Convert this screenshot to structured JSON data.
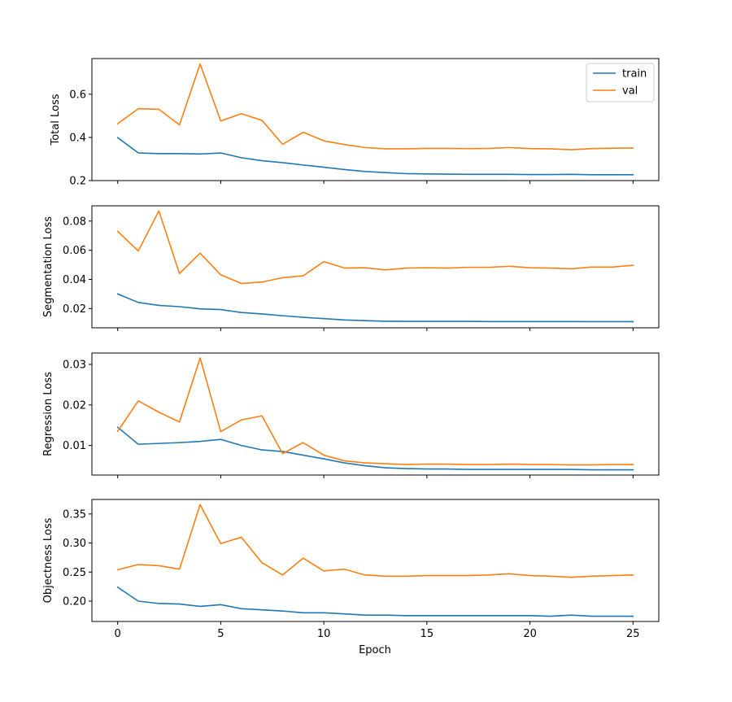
{
  "figure": {
    "xlabel": "Epoch",
    "x_ticks": [
      0,
      5,
      10,
      15,
      20,
      25
    ],
    "xlim": [
      -1.25,
      26.25
    ],
    "legend": {
      "placement": "top-right",
      "entries": [
        "train",
        "val"
      ]
    },
    "colors": {
      "train": "#1f77b4",
      "val": "#ff7f0e"
    }
  },
  "chart_data": [
    {
      "type": "line",
      "title": "",
      "ylabel": "Total Loss",
      "ylim": [
        0.2,
        0.765
      ],
      "yticks": [
        0.2,
        0.4,
        0.6
      ],
      "ytick_labels": [
        "0.2",
        "0.4",
        "0.6"
      ],
      "show_legend": true,
      "x": [
        0,
        1,
        2,
        3,
        4,
        5,
        6,
        7,
        8,
        9,
        10,
        11,
        12,
        13,
        14,
        15,
        16,
        17,
        18,
        19,
        20,
        21,
        22,
        23,
        24,
        25
      ],
      "series": [
        {
          "name": "train",
          "values": [
            0.399,
            0.328,
            0.325,
            0.325,
            0.323,
            0.328,
            0.306,
            0.292,
            0.283,
            0.272,
            0.262,
            0.251,
            0.242,
            0.237,
            0.232,
            0.231,
            0.23,
            0.229,
            0.229,
            0.229,
            0.228,
            0.228,
            0.229,
            0.227,
            0.227,
            0.227
          ]
        },
        {
          "name": "val",
          "values": [
            0.463,
            0.533,
            0.53,
            0.458,
            0.74,
            0.476,
            0.51,
            0.479,
            0.368,
            0.424,
            0.384,
            0.367,
            0.353,
            0.347,
            0.347,
            0.349,
            0.349,
            0.348,
            0.349,
            0.353,
            0.348,
            0.347,
            0.343,
            0.348,
            0.35,
            0.351
          ]
        }
      ]
    },
    {
      "type": "line",
      "title": "",
      "ylabel": "Segmentation Loss",
      "ylim": [
        0.0068,
        0.0905
      ],
      "yticks": [
        0.02,
        0.04,
        0.06,
        0.08
      ],
      "ytick_labels": [
        "0.02",
        "0.04",
        "0.06",
        "0.08"
      ],
      "show_legend": false,
      "x": [
        0,
        1,
        2,
        3,
        4,
        5,
        6,
        7,
        8,
        9,
        10,
        11,
        12,
        13,
        14,
        15,
        16,
        17,
        18,
        19,
        20,
        21,
        22,
        23,
        24,
        25
      ],
      "series": [
        {
          "name": "train",
          "values": [
            0.03,
            0.0242,
            0.0222,
            0.0213,
            0.0198,
            0.0193,
            0.0173,
            0.0163,
            0.0151,
            0.014,
            0.0131,
            0.0122,
            0.0117,
            0.0113,
            0.0112,
            0.0112,
            0.0112,
            0.0112,
            0.0111,
            0.0111,
            0.0111,
            0.0111,
            0.0111,
            0.011,
            0.011,
            0.011
          ]
        },
        {
          "name": "val",
          "values": [
            0.073,
            0.0595,
            0.087,
            0.044,
            0.058,
            0.0432,
            0.0372,
            0.0382,
            0.0412,
            0.0425,
            0.0522,
            0.0478,
            0.048,
            0.0465,
            0.0478,
            0.048,
            0.0478,
            0.0483,
            0.0483,
            0.049,
            0.048,
            0.0478,
            0.0473,
            0.0485,
            0.0485,
            0.0497
          ]
        }
      ]
    },
    {
      "type": "line",
      "title": "",
      "ylabel": "Regression Loss",
      "ylim": [
        0.0027,
        0.0328
      ],
      "yticks": [
        0.01,
        0.02,
        0.03
      ],
      "ytick_labels": [
        "0.01",
        "0.02",
        "0.03"
      ],
      "show_legend": false,
      "x": [
        0,
        1,
        2,
        3,
        4,
        5,
        6,
        7,
        8,
        9,
        10,
        11,
        12,
        13,
        14,
        15,
        16,
        17,
        18,
        19,
        20,
        21,
        22,
        23,
        24,
        25
      ],
      "series": [
        {
          "name": "train",
          "values": [
            0.0145,
            0.0103,
            0.0105,
            0.0107,
            0.011,
            0.0115,
            0.01,
            0.0089,
            0.0085,
            0.0076,
            0.0067,
            0.0057,
            0.005,
            0.0045,
            0.0043,
            0.0042,
            0.0042,
            0.0041,
            0.0041,
            0.0041,
            0.0041,
            0.0041,
            0.0041,
            0.004,
            0.004,
            0.004
          ]
        },
        {
          "name": "val",
          "values": [
            0.0135,
            0.021,
            0.0182,
            0.0158,
            0.0316,
            0.0134,
            0.0163,
            0.0173,
            0.008,
            0.0107,
            0.0076,
            0.0062,
            0.0057,
            0.0055,
            0.0053,
            0.0054,
            0.0054,
            0.0053,
            0.0053,
            0.0054,
            0.0053,
            0.0053,
            0.0052,
            0.0052,
            0.0053,
            0.0053
          ]
        }
      ]
    },
    {
      "type": "line",
      "title": "",
      "ylabel": "Objectness Loss",
      "ylim": [
        0.165,
        0.375
      ],
      "yticks": [
        0.2,
        0.25,
        0.3,
        0.35
      ],
      "ytick_labels": [
        "0.20",
        "0.25",
        "0.30",
        "0.35"
      ],
      "show_legend": false,
      "x": [
        0,
        1,
        2,
        3,
        4,
        5,
        6,
        7,
        8,
        9,
        10,
        11,
        12,
        13,
        14,
        15,
        16,
        17,
        18,
        19,
        20,
        21,
        22,
        23,
        24,
        25
      ],
      "series": [
        {
          "name": "train",
          "values": [
            0.224,
            0.2,
            0.196,
            0.195,
            0.191,
            0.194,
            0.187,
            0.185,
            0.183,
            0.18,
            0.18,
            0.178,
            0.176,
            0.176,
            0.175,
            0.175,
            0.175,
            0.175,
            0.175,
            0.175,
            0.175,
            0.174,
            0.176,
            0.174,
            0.174,
            0.174
          ]
        },
        {
          "name": "val",
          "values": [
            0.254,
            0.263,
            0.261,
            0.255,
            0.366,
            0.299,
            0.31,
            0.266,
            0.245,
            0.274,
            0.252,
            0.255,
            0.245,
            0.243,
            0.243,
            0.244,
            0.244,
            0.244,
            0.245,
            0.247,
            0.244,
            0.243,
            0.241,
            0.243,
            0.244,
            0.245
          ]
        }
      ]
    }
  ]
}
